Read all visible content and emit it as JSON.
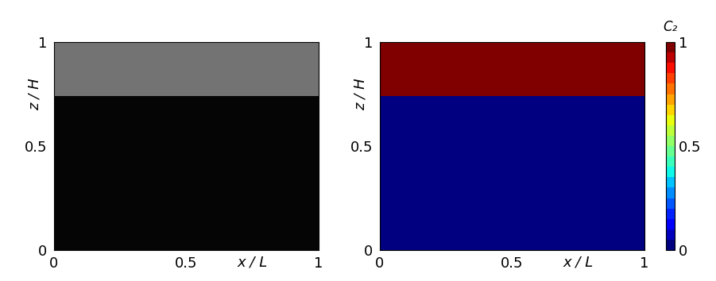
{
  "chart_data": [
    {
      "type": "image",
      "xlabel": "x / L",
      "ylabel": "z / H",
      "xlim": [
        0,
        1
      ],
      "ylim": [
        0,
        1
      ],
      "xticks": [
        0,
        0.5,
        1
      ],
      "yticks": [
        0,
        0.5,
        1
      ],
      "color_range": [
        0,
        1
      ],
      "cells": [
        [
          0.02,
          0.02
        ],
        [
          0.02,
          0.02
        ],
        [
          0.02,
          0.02
        ],
        [
          0.02,
          0.02
        ],
        [
          0.02,
          0.02
        ],
        [
          0.02,
          0.02
        ],
        [
          0.02,
          0.02
        ],
        [
          0.02,
          0.02
        ],
        [
          0.02,
          0.02
        ],
        [
          0.02,
          0.02
        ],
        [
          0.02,
          0.02
        ],
        [
          0.02,
          0.02
        ],
        [
          0.02,
          0.02
        ],
        [
          0.02,
          0.02
        ],
        [
          0.02,
          0.02
        ],
        [
          0.02,
          0.02
        ],
        [
          0.02,
          0.02
        ],
        [
          0.02,
          0.02
        ],
        [
          0.02,
          0.02
        ],
        [
          0.02,
          0.02
        ],
        [
          0.02,
          0.02
        ],
        [
          0.02,
          0.02
        ],
        [
          0.02,
          0.02
        ],
        [
          0.02,
          0.02
        ],
        [
          0.02,
          0.02
        ],
        [
          0.02,
          0.02
        ],
        [
          0.02,
          0.02
        ],
        [
          0.02,
          0.02
        ],
        [
          0.02,
          0.02
        ],
        [
          0.02,
          0.02
        ],
        [
          0.02,
          0.02
        ],
        [
          0.02,
          0.02
        ],
        [
          0.02,
          0.02
        ],
        [
          0.02,
          0.02
        ],
        [
          0.02,
          0.02
        ],
        [
          0.02,
          0.02
        ],
        [
          0.02,
          0.02
        ],
        [
          0.45,
          0.45
        ],
        [
          0.45,
          0.45
        ],
        [
          0.45,
          0.45
        ],
        [
          0.45,
          0.45
        ],
        [
          0.45,
          0.45
        ],
        [
          0.45,
          0.45
        ],
        [
          0.45,
          0.45
        ],
        [
          0.45,
          0.45
        ],
        [
          0.45,
          0.45
        ],
        [
          0.45,
          0.45
        ],
        [
          0.45,
          0.45
        ],
        [
          0.45,
          0.45
        ],
        [
          0.45,
          0.45
        ]
      ]
    },
    {
      "type": "heatmap",
      "xlabel": "x / L",
      "ylabel": "z / H",
      "xlim": [
        0,
        1
      ],
      "ylim": [
        0,
        1
      ],
      "xticks": [
        0,
        0.5,
        1
      ],
      "yticks": [
        0,
        0.5,
        1
      ],
      "color_label": "C₂",
      "color_range": [
        0,
        1
      ],
      "color_ticks": [
        0,
        0.5,
        1
      ],
      "cells": [
        [
          0,
          0
        ],
        [
          0,
          0
        ],
        [
          0,
          0
        ],
        [
          0,
          0
        ],
        [
          0,
          0
        ],
        [
          0,
          0
        ],
        [
          0,
          0
        ],
        [
          0,
          0
        ],
        [
          0,
          0
        ],
        [
          0,
          0
        ],
        [
          0,
          0
        ],
        [
          0,
          0
        ],
        [
          0,
          0
        ],
        [
          0,
          0
        ],
        [
          0,
          0
        ],
        [
          0,
          0
        ],
        [
          0,
          0
        ],
        [
          0,
          0
        ],
        [
          0,
          0
        ],
        [
          0,
          0
        ],
        [
          0,
          0
        ],
        [
          0,
          0
        ],
        [
          0,
          0
        ],
        [
          0,
          0
        ],
        [
          0,
          0
        ],
        [
          0,
          0
        ],
        [
          0,
          0
        ],
        [
          0,
          0
        ],
        [
          0,
          0
        ],
        [
          0,
          0
        ],
        [
          0,
          0
        ],
        [
          0,
          0
        ],
        [
          0,
          0
        ],
        [
          0,
          0
        ],
        [
          0,
          0
        ],
        [
          0,
          0
        ],
        [
          0,
          0
        ],
        [
          1,
          1
        ],
        [
          1,
          1
        ],
        [
          1,
          1
        ],
        [
          1,
          1
        ],
        [
          1,
          1
        ],
        [
          1,
          1
        ],
        [
          1,
          1
        ],
        [
          1,
          1
        ],
        [
          1,
          1
        ],
        [
          1,
          1
        ],
        [
          1,
          1
        ],
        [
          1,
          1
        ],
        [
          1,
          1
        ]
      ]
    }
  ]
}
